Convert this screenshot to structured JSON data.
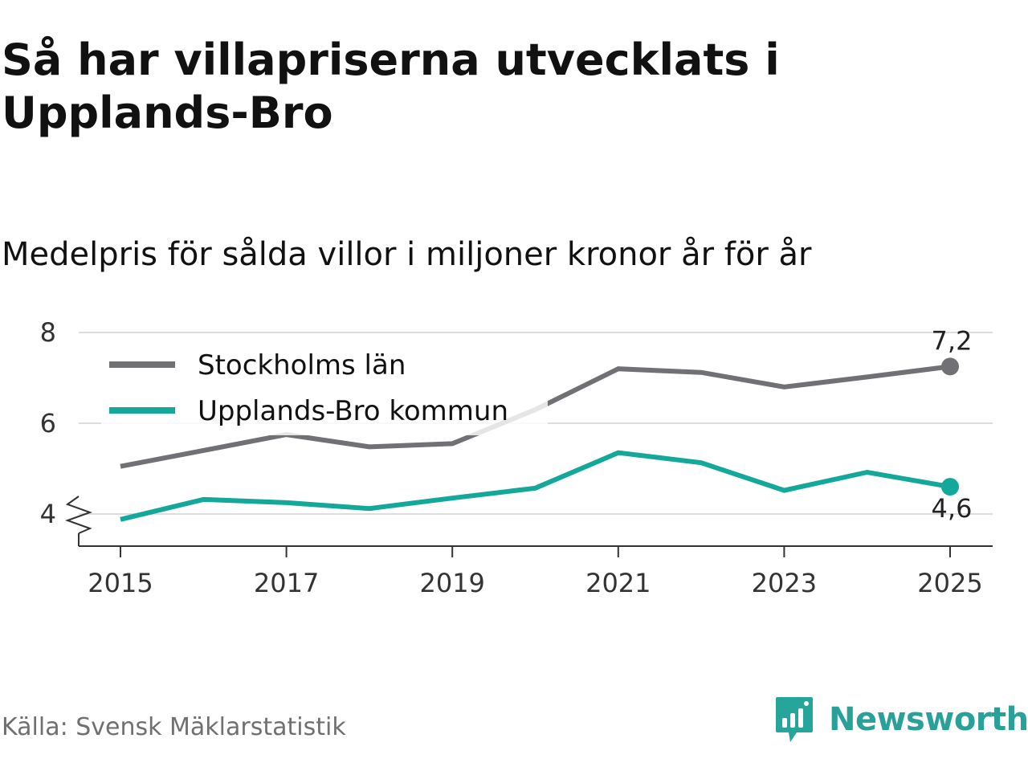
{
  "title": "Så har villapriserna utvecklats i Upplands-Bro",
  "subtitle": "Medelpris för sålda villor i miljoner kronor år för år",
  "source": "Källa: Svensk Mäklarstatistik",
  "brand": {
    "name": "Newsworthy",
    "icon": "newsworthy-logo-icon",
    "color": "#26a69a"
  },
  "colors": {
    "stockholm": "#707075",
    "upplands": "#14a89a",
    "grid": "#dddddd",
    "axis": "#333333"
  },
  "chart_data": {
    "type": "line",
    "title": "Så har villapriserna utvecklats i Upplands-Bro",
    "subtitle": "Medelpris för sålda villor i miljoner kronor år för år",
    "x": [
      2015,
      2016,
      2017,
      2018,
      2019,
      2020,
      2021,
      2022,
      2023,
      2024,
      2025
    ],
    "xticks": [
      "2015",
      "2017",
      "2019",
      "2021",
      "2023",
      "2025"
    ],
    "yticks": [
      "4",
      "6",
      "8"
    ],
    "ylim": [
      3.3,
      8.2
    ],
    "xlim": [
      2014.5,
      2025.5
    ],
    "axis_break": true,
    "grid": true,
    "legend_position": "top-left",
    "series": [
      {
        "name": "Stockholms län",
        "values": [
          5.05,
          5.4,
          5.75,
          5.48,
          5.55,
          6.3,
          7.2,
          7.12,
          6.8,
          7.02,
          7.25
        ],
        "end_label": "7,2"
      },
      {
        "name": "Upplands-Bro kommun",
        "values": [
          3.88,
          4.32,
          4.25,
          4.12,
          4.35,
          4.57,
          5.35,
          5.13,
          4.52,
          4.92,
          4.6
        ],
        "end_label": "4,6"
      }
    ]
  }
}
